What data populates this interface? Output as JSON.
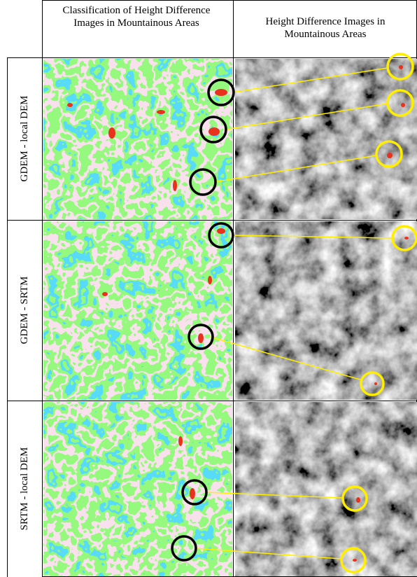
{
  "header": {
    "columns": [
      "Classification of Height Difference Images in Mountainous Areas",
      "Height Difference Images in Mountainous Areas"
    ]
  },
  "rows": [
    {
      "label": "GDEM - local DEM"
    },
    {
      "label": "GDEM - SRTM"
    },
    {
      "label": "SRTM - local DEM"
    }
  ]
}
